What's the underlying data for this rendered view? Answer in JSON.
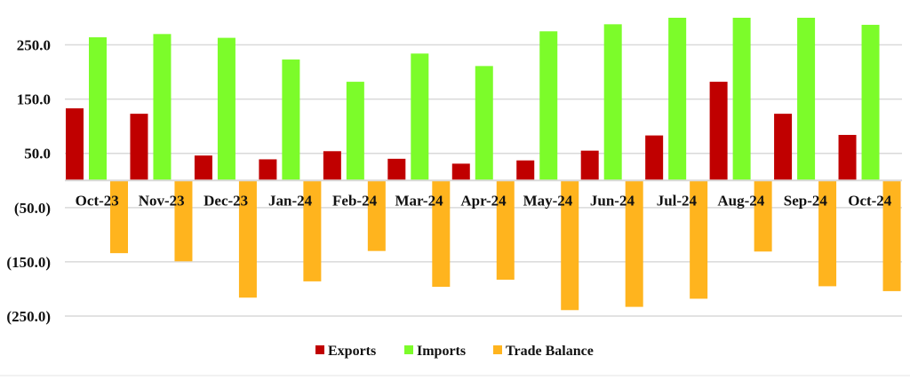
{
  "chart_data": {
    "type": "bar",
    "title": "",
    "xlabel": "",
    "ylabel": "",
    "ylim": [
      -250,
      300
    ],
    "yticks": [
      250,
      150,
      50,
      -50,
      -150,
      -250
    ],
    "ytick_labels": [
      "250.0",
      "150.0",
      "50.0",
      "(50.0)",
      "(150.0)",
      "(250.0)"
    ],
    "grid": true,
    "legend_position": "bottom",
    "categories": [
      "Oct-23",
      "Nov-23",
      "Dec-23",
      "Jan-24",
      "Feb-24",
      "Mar-24",
      "Apr-24",
      "May-24",
      "Jun-24",
      "Jul-24",
      "Aug-24",
      "Sep-24",
      "Oct-24"
    ],
    "series": [
      {
        "name": "Exports",
        "color": "#c00000",
        "values": [
          133,
          123,
          46,
          39,
          54,
          40,
          31,
          37,
          55,
          83,
          182,
          123,
          84
        ]
      },
      {
        "name": "Imports",
        "color": "#7cfc2a",
        "values": [
          264,
          270,
          263,
          223,
          182,
          234,
          211,
          275,
          288,
          300,
          300,
          300,
          287
        ]
      },
      {
        "name": "Trade Balance",
        "color": "#ffb41e",
        "values": [
          -134,
          -149,
          -216,
          -186,
          -130,
          -196,
          -183,
          -239,
          -233,
          -218,
          -131,
          -195,
          -204
        ]
      }
    ]
  }
}
